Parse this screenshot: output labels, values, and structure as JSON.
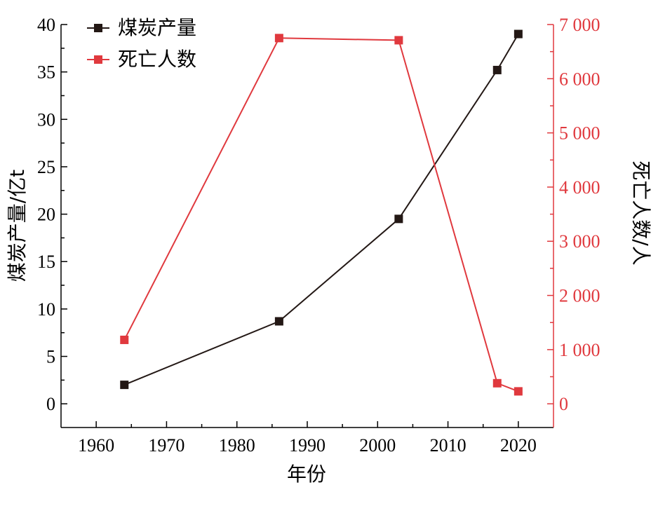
{
  "colors": {
    "axis_black": "#000000",
    "series_black": "#231815",
    "series_red": "#e0393e",
    "right_axis": "#e0393e"
  },
  "chart_data": {
    "type": "line",
    "xlabel": "年份",
    "ylabel_left": "煤炭产量/亿t",
    "ylabel_right": "死亡人数/人",
    "xlim": [
      1955,
      2025
    ],
    "ylim_left": [
      -2.5,
      40
    ],
    "ylim_right": [
      -437.5,
      7000
    ],
    "x_ticks": [
      1960,
      1970,
      1980,
      1990,
      2000,
      2010,
      2020
    ],
    "x_tick_labels": [
      "1960",
      "1970",
      "1980",
      "1990",
      "2000",
      "2010",
      "2020"
    ],
    "y_left_ticks": [
      0,
      5,
      10,
      15,
      20,
      25,
      30,
      35,
      40
    ],
    "y_left_tick_labels": [
      "0",
      "5",
      "10",
      "15",
      "20",
      "25",
      "30",
      "35",
      "40"
    ],
    "y_right_ticks": [
      0,
      1000,
      2000,
      3000,
      4000,
      5000,
      6000,
      7000
    ],
    "y_right_tick_labels": [
      "0",
      "1 000",
      "2 000",
      "3 000",
      "4 000",
      "5 000",
      "6 000",
      "7 000"
    ],
    "grid": false,
    "legend_position": "top-left",
    "series": [
      {
        "name": "煤炭产量",
        "axis": "left",
        "color": "#231815",
        "marker": "square",
        "x": [
          1964,
          1986,
          2003,
          2017,
          2020
        ],
        "y": [
          2.0,
          8.7,
          19.5,
          35.2,
          39.0
        ]
      },
      {
        "name": "死亡人数",
        "axis": "right",
        "color": "#e0393e",
        "marker": "square",
        "x": [
          1964,
          1986,
          2003,
          2017,
          2020
        ],
        "y": [
          1180,
          6750,
          6710,
          380,
          230
        ]
      }
    ]
  }
}
